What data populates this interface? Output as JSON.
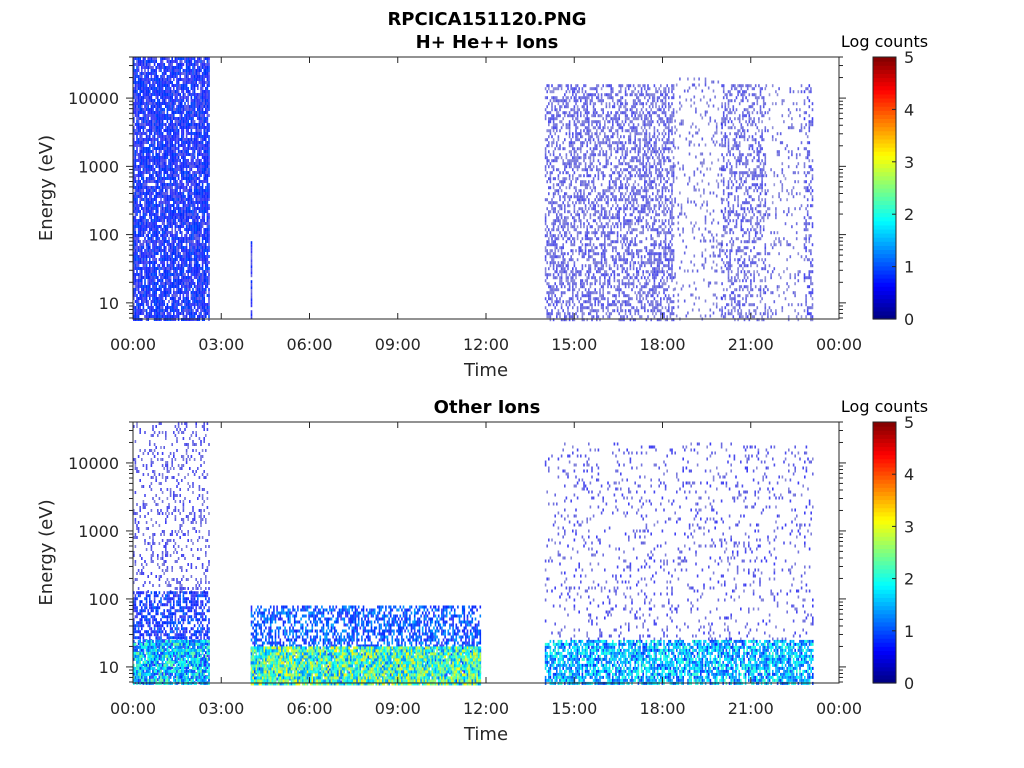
{
  "figure_title": "RPCICA151120.PNG",
  "chart_data": [
    {
      "type": "heatmap",
      "title": "H+ He++ Ions",
      "xlabel": "Time",
      "ylabel": "Energy (eV)",
      "x_tick_labels": [
        "00:00",
        "03:00",
        "06:00",
        "09:00",
        "12:00",
        "15:00",
        "18:00",
        "21:00",
        "00:00"
      ],
      "x_ticks_hours": [
        0,
        3,
        6,
        9,
        12,
        15,
        18,
        21,
        24
      ],
      "xlim_hours": [
        0,
        24
      ],
      "y_scale": "log",
      "ylim": [
        5.8,
        40000
      ],
      "y_tick_labels": [
        "10",
        "100",
        "1000",
        "10000"
      ],
      "y_ticks": [
        10,
        100,
        1000,
        10000
      ],
      "colorbar": {
        "title": "Log counts",
        "ticks": [
          "0",
          "1",
          "2",
          "3",
          "4",
          "5"
        ],
        "range": [
          0,
          5
        ],
        "colormap": "jet"
      },
      "activity_blocks": [
        {
          "t_start": 0.0,
          "t_end": 2.6,
          "e_min": 5.8,
          "e_max": 40000,
          "level": 0.7,
          "density": 0.85
        },
        {
          "t_start": 4.0,
          "t_end": 4.05,
          "e_min": 5.8,
          "e_max": 80,
          "level": 0.6,
          "density": 0.9
        },
        {
          "t_start": 14.0,
          "t_end": 18.4,
          "e_min": 5.8,
          "e_max": 16000,
          "level": 0.35,
          "density": 0.45
        },
        {
          "t_start": 18.4,
          "t_end": 20.0,
          "e_min": 5.8,
          "e_max": 20000,
          "level": 0.3,
          "density": 0.12
        },
        {
          "t_start": 20.0,
          "t_end": 21.5,
          "e_min": 5.8,
          "e_max": 16000,
          "level": 0.35,
          "density": 0.35
        },
        {
          "t_start": 21.5,
          "t_end": 22.7,
          "e_min": 5.8,
          "e_max": 16000,
          "level": 0.3,
          "density": 0.1
        },
        {
          "t_start": 22.8,
          "t_end": 23.1,
          "e_min": 5.8,
          "e_max": 16000,
          "level": 0.4,
          "density": 0.35
        }
      ]
    },
    {
      "type": "heatmap",
      "title": "Other Ions",
      "xlabel": "Time",
      "ylabel": "Energy (eV)",
      "x_tick_labels": [
        "00:00",
        "03:00",
        "06:00",
        "09:00",
        "12:00",
        "15:00",
        "18:00",
        "21:00",
        "00:00"
      ],
      "x_ticks_hours": [
        0,
        3,
        6,
        9,
        12,
        15,
        18,
        21,
        24
      ],
      "xlim_hours": [
        0,
        24
      ],
      "y_scale": "log",
      "ylim": [
        5.8,
        40000
      ],
      "y_tick_labels": [
        "10",
        "100",
        "1000",
        "10000"
      ],
      "y_ticks": [
        10,
        100,
        1000,
        10000
      ],
      "colorbar": {
        "title": "Log counts",
        "ticks": [
          "0",
          "1",
          "2",
          "3",
          "4",
          "5"
        ],
        "range": [
          0,
          5
        ],
        "colormap": "jet"
      },
      "activity_blocks": [
        {
          "t_start": 0.0,
          "t_end": 2.6,
          "e_min": 5.8,
          "e_max": 130,
          "level": 0.8,
          "density": 0.6
        },
        {
          "t_start": 0.0,
          "t_end": 2.6,
          "e_min": 130,
          "e_max": 40000,
          "level": 0.4,
          "density": 0.2
        },
        {
          "t_start": 0.0,
          "t_end": 2.6,
          "e_min": 5.8,
          "e_max": 25,
          "level": 1.7,
          "density": 0.8
        },
        {
          "t_start": 4.0,
          "t_end": 11.8,
          "e_min": 5.8,
          "e_max": 80,
          "level": 1.0,
          "density": 0.55
        },
        {
          "t_start": 4.0,
          "t_end": 11.8,
          "e_min": 5.8,
          "e_max": 20,
          "level": 2.2,
          "density": 0.95
        },
        {
          "t_start": 14.0,
          "t_end": 23.1,
          "e_min": 5.8,
          "e_max": 25,
          "level": 1.5,
          "density": 0.75
        },
        {
          "t_start": 14.0,
          "t_end": 23.1,
          "e_min": 25,
          "e_max": 20000,
          "level": 0.4,
          "density": 0.1
        }
      ]
    }
  ]
}
